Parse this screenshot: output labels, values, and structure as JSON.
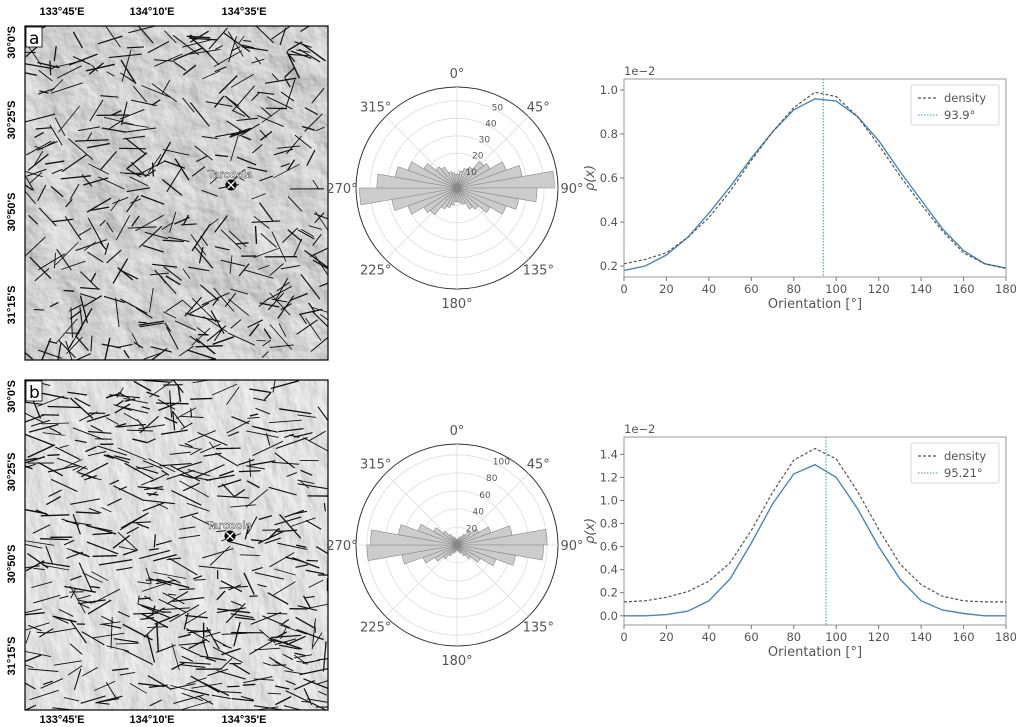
{
  "colors": {
    "curve": "#4a86b8",
    "density": "#555555",
    "peak": "#3a9aa0",
    "bar_fill": "#cccccc",
    "bar_stroke": "#888888",
    "axis": "#333333",
    "label": "#555555"
  },
  "map": {
    "lon_ticks": [
      "133°45'E",
      "134°10'E",
      "134°35'E"
    ],
    "lat_ticks": [
      "30°0'S",
      "30°25'S",
      "30°50'S",
      "31°15'S"
    ],
    "place": "Tarcoola"
  },
  "chart_data": [
    {
      "panel": "a",
      "type": "polar-bar",
      "direction_labels": [
        "0°",
        "45°",
        "90°",
        "135°",
        "180°",
        "225°",
        "270°",
        "315°"
      ],
      "r_ticks": [
        10,
        20,
        30,
        40,
        50
      ],
      "rmax": 58,
      "bin_width_deg": 10,
      "bin_centers_deg": [
        5,
        15,
        25,
        35,
        45,
        55,
        65,
        75,
        85,
        95,
        105,
        115,
        125,
        135,
        145,
        155,
        165,
        175
      ],
      "counts": [
        8,
        10,
        12,
        14,
        20,
        22,
        30,
        38,
        56,
        46,
        36,
        30,
        22,
        16,
        14,
        10,
        9,
        8
      ]
    },
    {
      "panel": "a",
      "type": "line",
      "xlabel": "Orientation [°]",
      "ylabel": "ρ(x)",
      "offset_label": "1e−2",
      "xlim": [
        0,
        180
      ],
      "ylim": [
        0.15,
        1.05
      ],
      "xticks": [
        0,
        20,
        40,
        60,
        80,
        100,
        120,
        140,
        160,
        180
      ],
      "yticks": [
        0.2,
        0.4,
        0.6,
        0.8,
        1.0
      ],
      "ytick_labels": [
        "0.2",
        "0.4",
        "0.6",
        "0.8",
        "1.0"
      ],
      "legend": [
        "density",
        "93.9°"
      ],
      "legend_position": "top-right",
      "peak_x": 93.9,
      "x": [
        0,
        10,
        20,
        30,
        40,
        50,
        60,
        70,
        80,
        90,
        100,
        110,
        120,
        130,
        140,
        150,
        160,
        170,
        180
      ],
      "series": [
        {
          "name": "",
          "style": "solid",
          "values": [
            0.18,
            0.2,
            0.25,
            0.33,
            0.44,
            0.56,
            0.69,
            0.81,
            0.91,
            0.96,
            0.95,
            0.88,
            0.77,
            0.63,
            0.5,
            0.37,
            0.27,
            0.21,
            0.19
          ]
        },
        {
          "name": "density",
          "style": "dashed",
          "values": [
            0.21,
            0.23,
            0.26,
            0.33,
            0.42,
            0.54,
            0.68,
            0.81,
            0.92,
            0.99,
            0.97,
            0.88,
            0.75,
            0.61,
            0.48,
            0.36,
            0.26,
            0.21,
            0.19
          ]
        }
      ]
    },
    {
      "panel": "b",
      "type": "polar-bar",
      "direction_labels": [
        "0°",
        "45°",
        "90°",
        "135°",
        "180°",
        "225°",
        "270°",
        "315°"
      ],
      "r_ticks": [
        20,
        40,
        60,
        80,
        100
      ],
      "rmax": 112,
      "bin_width_deg": 10,
      "bin_centers_deg": [
        5,
        15,
        25,
        35,
        45,
        55,
        65,
        75,
        85,
        95,
        105,
        115,
        125,
        135,
        145,
        155,
        165,
        175
      ],
      "counts": [
        6,
        8,
        10,
        14,
        20,
        28,
        40,
        62,
        100,
        96,
        66,
        46,
        30,
        20,
        14,
        10,
        8,
        6
      ]
    },
    {
      "panel": "b",
      "type": "line",
      "xlabel": "Orientation [°]",
      "ylabel": "ρ(x)",
      "offset_label": "1e−2",
      "xlim": [
        0,
        180
      ],
      "ylim": [
        -0.08,
        1.55
      ],
      "xticks": [
        0,
        20,
        40,
        60,
        80,
        100,
        120,
        140,
        160,
        180
      ],
      "yticks": [
        0.0,
        0.2,
        0.4,
        0.6,
        0.8,
        1.0,
        1.2,
        1.4
      ],
      "ytick_labels": [
        "0.0",
        "0.2",
        "0.4",
        "0.6",
        "0.8",
        "1.0",
        "1.2",
        "1.4"
      ],
      "legend": [
        "density",
        "95.21°"
      ],
      "legend_position": "top-right",
      "peak_x": 95.21,
      "x": [
        0,
        10,
        20,
        30,
        40,
        50,
        60,
        70,
        80,
        90,
        100,
        110,
        120,
        130,
        140,
        150,
        160,
        170,
        180
      ],
      "series": [
        {
          "name": "",
          "style": "solid",
          "values": [
            0.0,
            0.0,
            0.01,
            0.04,
            0.13,
            0.32,
            0.63,
            0.97,
            1.23,
            1.31,
            1.2,
            0.93,
            0.6,
            0.32,
            0.13,
            0.05,
            0.02,
            0.0,
            0.0
          ]
        },
        {
          "name": "density",
          "style": "dashed",
          "values": [
            0.12,
            0.13,
            0.16,
            0.21,
            0.3,
            0.46,
            0.74,
            1.07,
            1.35,
            1.45,
            1.36,
            1.08,
            0.75,
            0.45,
            0.27,
            0.17,
            0.13,
            0.12,
            0.12
          ]
        }
      ]
    }
  ]
}
